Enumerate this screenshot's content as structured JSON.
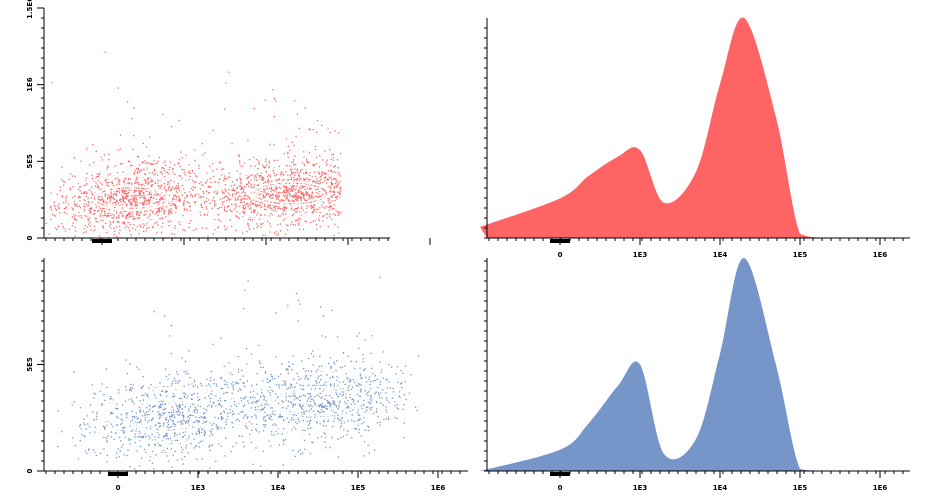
{
  "chart_data": [
    {
      "type": "scatter",
      "panel": "top-left",
      "style": "contour-dot-plot",
      "color": "#f96969",
      "contour_color": "#ffffff",
      "xscale": "biexponential",
      "xticks": [
        "0",
        "1E3",
        "1E4",
        "1E5",
        "1E6"
      ],
      "xtick_labels_visible": false,
      "yticks": [
        "0",
        "5E5",
        "1E6",
        "1.5E6"
      ],
      "ylabel_text": [
        "0",
        "5E5",
        "1E6",
        "1.5E6"
      ],
      "ylim": [
        0,
        1500000
      ],
      "populations": [
        {
          "x_center": 300,
          "y_center": 260000
        },
        {
          "x_center": 20000,
          "y_center": 290000
        }
      ],
      "events_approx": 20000
    },
    {
      "type": "area",
      "panel": "top-right",
      "style": "histogram",
      "color": "#ff6464",
      "xscale": "biexponential",
      "xticks": [
        "0",
        "1E3",
        "1E4",
        "1E5",
        "1E6"
      ],
      "x": [
        "-1000",
        "0",
        "300",
        "600",
        "1000",
        "2000",
        "5000",
        "10000",
        "20000",
        "50000",
        "100000",
        "200000"
      ],
      "y": [
        0.05,
        0.18,
        0.28,
        0.37,
        0.4,
        0.16,
        0.3,
        0.7,
        1.0,
        0.55,
        0.02,
        0.0
      ],
      "ylim": [
        0,
        1
      ]
    },
    {
      "type": "scatter",
      "panel": "bottom-left",
      "style": "contour-dot-plot",
      "color": "#7495c8",
      "contour_color": "#ffffff",
      "xscale": "biexponential",
      "xticks": [
        "0",
        "1E3",
        "1E4",
        "1E5",
        "1E6"
      ],
      "yticks": [
        "0",
        "5E5"
      ],
      "ylim": [
        0,
        1000000
      ],
      "populations": [
        {
          "x_center": 500,
          "y_center": 260000
        },
        {
          "x_center": 30000,
          "y_center": 320000
        }
      ],
      "events_approx": 10000
    },
    {
      "type": "area",
      "panel": "bottom-right",
      "style": "histogram",
      "color": "#7696c9",
      "xscale": "biexponential",
      "xticks": [
        "0",
        "1E3",
        "1E4",
        "1E5",
        "1E6"
      ],
      "x": [
        "-1000",
        "0",
        "300",
        "600",
        "1000",
        "2000",
        "5000",
        "10000",
        "20000",
        "50000",
        "100000",
        "200000"
      ],
      "y": [
        0.0,
        0.1,
        0.22,
        0.4,
        0.5,
        0.08,
        0.15,
        0.55,
        1.0,
        0.5,
        0.01,
        0.0
      ],
      "ylim": [
        0,
        1
      ]
    }
  ]
}
